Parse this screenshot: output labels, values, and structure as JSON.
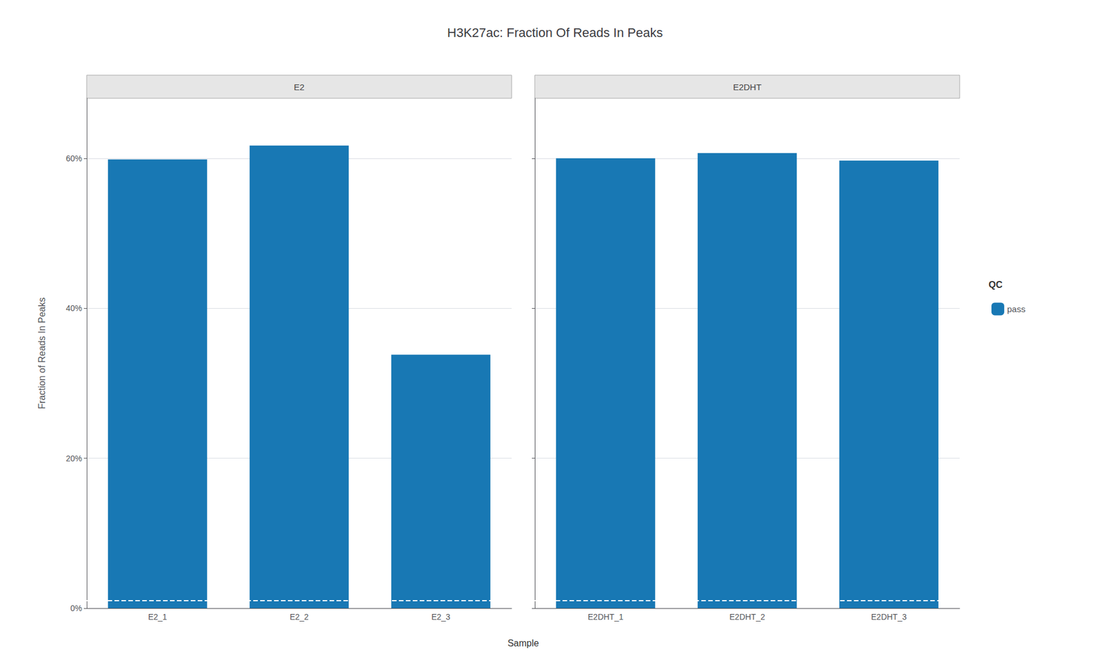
{
  "chart_data": {
    "type": "bar",
    "title": "H3K27ac: Fraction Of Reads In Peaks",
    "xlabel": "Sample",
    "ylabel": "Fraction of Reads In Peaks",
    "legend_title": "QC",
    "legend": "right",
    "grid": true,
    "ylim": [
      0,
      0.68
    ],
    "yticks": [
      {
        "value": 0,
        "label": "0%"
      },
      {
        "value": 0.2,
        "label": "20%"
      },
      {
        "value": 0.4,
        "label": "40%"
      },
      {
        "value": 0.6,
        "label": "60%"
      }
    ],
    "qc_line": {
      "value": 0.01,
      "color": "white",
      "line_style": "dashed"
    },
    "facets": [
      {
        "title": "E2",
        "categories": [
          "E2_1",
          "E2_2",
          "E2_3"
        ],
        "series": [
          {
            "name": "pass",
            "color": "#1878b4",
            "values": [
              0.5985,
              0.617,
              0.338
            ]
          }
        ]
      },
      {
        "title": "E2DHT",
        "categories": [
          "E2DHT_1",
          "E2DHT_2",
          "E2DHT_3"
        ],
        "series": [
          {
            "name": "pass",
            "color": "#1878b4",
            "values": [
              0.6,
              0.607,
              0.597
            ]
          }
        ]
      }
    ]
  }
}
